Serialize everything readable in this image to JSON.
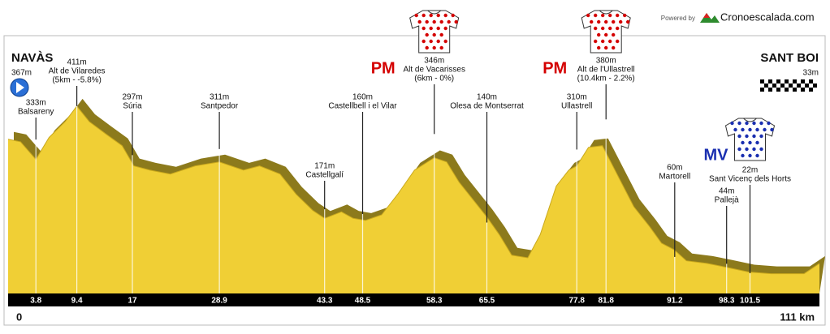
{
  "chart_data": {
    "type": "area",
    "powered_by": "Powered by",
    "brand": "Cronoescalada.com",
    "color": "#f0cf35",
    "shadow_color": "#8c7a1c",
    "xlim": [
      0,
      111
    ],
    "ylim": [
      -25,
      600
    ],
    "x": [
      0,
      1.7,
      3.8,
      5.6,
      7.8,
      9.4,
      11.1,
      13.3,
      15.6,
      17.2,
      19.4,
      22.2,
      25.6,
      28.9,
      32.2,
      34.4,
      37.2,
      39.4,
      41.7,
      43.3,
      45.6,
      47.2,
      48.9,
      51.1,
      53.3,
      55.6,
      58.3,
      60,
      61.7,
      63.9,
      65.5,
      67.2,
      68.9,
      71.1,
      72.8,
      75,
      76.7,
      77.8,
      79.4,
      81.3,
      83.3,
      85.6,
      87.8,
      89.4,
      91.1,
      92.8,
      95.6,
      98.3,
      101.3,
      104.4,
      108.9,
      111
    ],
    "values": [
      334,
      328,
      287,
      338,
      375,
      411,
      375,
      347,
      319,
      272,
      262,
      253,
      272,
      281,
      262,
      272,
      253,
      206,
      168,
      150,
      165,
      150,
      145,
      158,
      206,
      262,
      291,
      281,
      234,
      187,
      153,
      112,
      64,
      58,
      112,
      225,
      262,
      272,
      315,
      319,
      253,
      177,
      130,
      92,
      77,
      51,
      45,
      36,
      25,
      21,
      21,
      45
    ],
    "waypoints": [
      {
        "km": 0,
        "value": 367,
        "value_label": "367m",
        "name": "NAVÀS"
      },
      {
        "km": 3.8,
        "value": 333,
        "value_label": "333m",
        "name": "Balsareny"
      },
      {
        "km": 9.4,
        "value": 411,
        "value_label": "411m",
        "name": "Alt de Vilaredes",
        "detail": "(5km - -5.8%)"
      },
      {
        "km": 17,
        "value": 297,
        "value_label": "297m",
        "name": "Súria"
      },
      {
        "km": 28.9,
        "value": 311,
        "value_label": "311m",
        "name": "Santpedor"
      },
      {
        "km": 43.3,
        "value": 171,
        "value_label": "171m",
        "name": "Castellgalí"
      },
      {
        "km": 48.5,
        "value": 160,
        "value_label": "160m",
        "name": "Castellbell i el Vilar"
      },
      {
        "km": 58.3,
        "value": 346,
        "value_label": "346m",
        "name": "Alt de Vacarisses",
        "detail": "(6km - 0%)",
        "badge": "PM",
        "badge_color": "#d40000"
      },
      {
        "km": 65.5,
        "value": 140,
        "value_label": "140m",
        "name": "Olesa de Montserrat"
      },
      {
        "km": 77.8,
        "value": 310,
        "value_label": "310m",
        "name": "Ullastrell"
      },
      {
        "km": 81.8,
        "value": 380,
        "value_label": "380m",
        "name": "Alt de l'Ullastrell",
        "detail": "(10.4km - 2.2%)",
        "badge": "PM",
        "badge_color": "#d40000"
      },
      {
        "km": 91.2,
        "value": 60,
        "value_label": "60m",
        "name": "Martorell"
      },
      {
        "km": 98.3,
        "value": 44,
        "value_label": "44m",
        "name": "Pallejà"
      },
      {
        "km": 101.5,
        "value": 22,
        "value_label": "22m",
        "name": "Sant Vicenç dels Horts",
        "badge": "MV",
        "badge_color": "#1a2fb0"
      },
      {
        "km": 111,
        "value": 33,
        "value_label": "33m",
        "name": "SANT BOI",
        "km_label": "111 km"
      }
    ]
  }
}
